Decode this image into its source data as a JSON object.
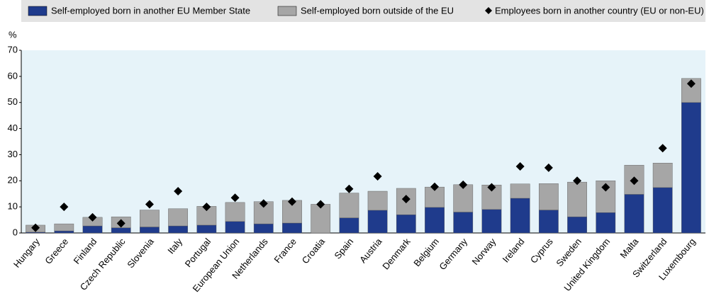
{
  "chart_data": {
    "type": "bar",
    "stacked": true,
    "ylabel": "%",
    "categories": [
      "Hungary",
      "Greece",
      "Finland",
      "Czech Republic",
      "Slovenia",
      "Italy",
      "Portugal",
      "European Union",
      "Netherlands",
      "France",
      "Croatia",
      "Spain",
      "Austria",
      "Denmark",
      "Belgium",
      "Germany",
      "Norway",
      "Ireland",
      "Cyprus",
      "Sweden",
      "United Kingdom",
      "Malta",
      "Switzerland",
      "Luxembourg"
    ],
    "series": [
      {
        "name": "Self-employed born in another EU Member State",
        "type": "bar",
        "color": "#1f3b8c",
        "values": [
          0.3,
          0.8,
          2.7,
          2,
          2.3,
          2.7,
          3,
          4.4,
          3.5,
          3.8,
          0,
          5.8,
          8.7,
          7,
          9.8,
          8,
          9,
          13.3,
          8.8,
          6.2,
          7.8,
          14.8,
          17.4,
          50
        ]
      },
      {
        "name": "Self-employed born outside of the EU",
        "type": "bar",
        "color": "#a6a6a6",
        "values": [
          2.7,
          2.7,
          3.3,
          4.2,
          6.5,
          6.6,
          7.2,
          7.3,
          8.5,
          8.7,
          11,
          9.5,
          7.3,
          10.1,
          7.8,
          10.5,
          9.4,
          5.5,
          10.1,
          13.3,
          12.2,
          11.2,
          9.4,
          9.2
        ]
      },
      {
        "name": "Employees born in another country (EU or non-EU)",
        "type": "scatter",
        "color": "#000000",
        "values": [
          2,
          10,
          6,
          3.7,
          11,
          16,
          10,
          13.5,
          11.3,
          12,
          11,
          16.9,
          21.7,
          13,
          17.7,
          18.5,
          17.5,
          25.5,
          25,
          20,
          17.5,
          20,
          32.5,
          57.2
        ]
      }
    ],
    "ylim": [
      0,
      70
    ],
    "yticks": [
      0,
      10,
      20,
      30,
      40,
      50,
      60,
      70
    ],
    "grid": false
  }
}
